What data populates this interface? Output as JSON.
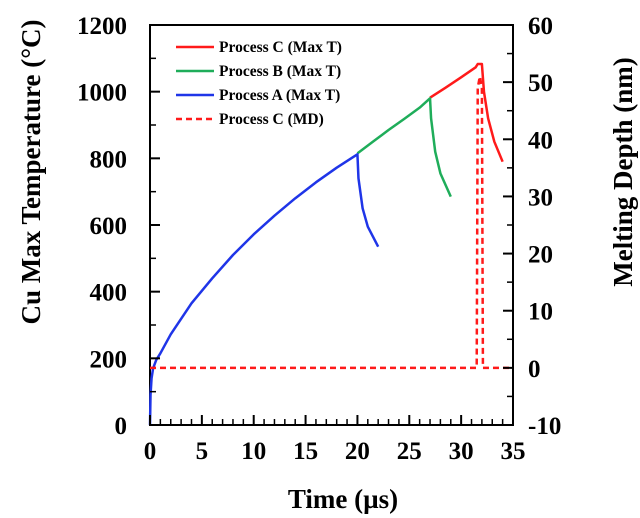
{
  "chart_data": {
    "type": "line",
    "xlabel": "Time (µs)",
    "ylabel_left": "Cu Max Temperature (°C)",
    "ylabel_right": "Melting Depth (nm)",
    "xlim": [
      0,
      35
    ],
    "ylim_left": [
      0,
      1200
    ],
    "ylim_right": [
      -10,
      60
    ],
    "x_ticks": [
      "0",
      "5",
      "10",
      "15",
      "20",
      "25",
      "30",
      "35"
    ],
    "y_ticks_left": [
      "0",
      "200",
      "400",
      "600",
      "800",
      "1000",
      "1200"
    ],
    "y_ticks_right": [
      "-10",
      "0",
      "10",
      "20",
      "30",
      "40",
      "50",
      "60"
    ],
    "grid": false,
    "legend_position": "top-left",
    "series": [
      {
        "name": "Process C (Max T)",
        "color": "#ff1a1a",
        "dash": "solid",
        "axis": "left",
        "points": [
          [
            27.0,
            982
          ],
          [
            28.5,
            1012
          ],
          [
            30.0,
            1043
          ],
          [
            31.4,
            1073
          ],
          [
            31.6,
            1083
          ],
          [
            32.0,
            1083
          ],
          [
            32.2,
            1000
          ],
          [
            32.6,
            920
          ],
          [
            33.2,
            850
          ],
          [
            34.0,
            790
          ]
        ]
      },
      {
        "name": "Process B (Max T)",
        "color": "#1fad5a",
        "dash": "solid",
        "axis": "left",
        "points": [
          [
            20.0,
            815
          ],
          [
            21.5,
            850
          ],
          [
            23.0,
            885
          ],
          [
            24.5,
            918
          ],
          [
            26.0,
            952
          ],
          [
            27.0,
            980
          ],
          [
            27.1,
            920
          ],
          [
            27.5,
            820
          ],
          [
            28.0,
            755
          ],
          [
            29.0,
            685
          ]
        ]
      },
      {
        "name": "Process A (Max T)",
        "color": "#1f35e8",
        "dash": "solid",
        "axis": "left",
        "points": [
          [
            0.0,
            0
          ],
          [
            0.05,
            90
          ],
          [
            0.15,
            140
          ],
          [
            0.3,
            170
          ],
          [
            0.6,
            195
          ],
          [
            1.0,
            215
          ],
          [
            2.0,
            272
          ],
          [
            4.0,
            365
          ],
          [
            6.0,
            440
          ],
          [
            8.0,
            510
          ],
          [
            10.0,
            572
          ],
          [
            12.0,
            628
          ],
          [
            14.0,
            680
          ],
          [
            16.0,
            728
          ],
          [
            18.0,
            772
          ],
          [
            20.0,
            812
          ],
          [
            20.1,
            740
          ],
          [
            20.5,
            650
          ],
          [
            21.0,
            595
          ],
          [
            22.0,
            535
          ]
        ]
      },
      {
        "name": "Process C (MD)",
        "color": "#ff1a1a",
        "dash": "dashed",
        "axis": "right",
        "points": [
          [
            0.0,
            0
          ],
          [
            31.5,
            0
          ],
          [
            31.6,
            49
          ],
          [
            31.8,
            51
          ],
          [
            32.0,
            49
          ],
          [
            32.1,
            0
          ],
          [
            35.0,
            0
          ]
        ]
      }
    ]
  }
}
